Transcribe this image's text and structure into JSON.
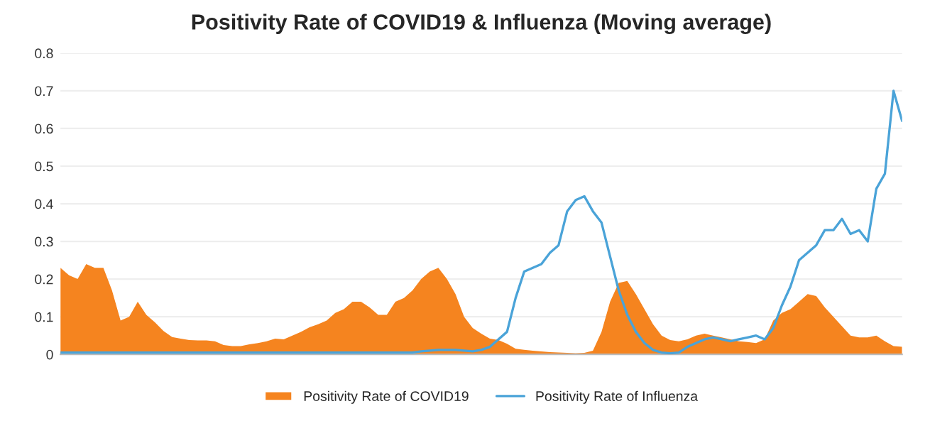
{
  "chart_data": {
    "type": "area",
    "title": "Positivity Rate of COVID19 & Influenza (Moving average)",
    "categories": [
      null,
      null,
      null,
      null,
      null,
      null,
      null,
      null,
      null,
      null,
      null,
      null,
      null,
      null,
      null,
      null,
      null,
      null,
      null,
      null,
      null,
      null,
      null,
      null,
      null,
      null,
      null,
      null,
      null,
      null,
      null,
      null,
      null,
      null,
      null,
      null,
      null,
      null,
      null,
      null,
      null,
      null,
      null,
      null,
      null,
      null,
      null,
      null,
      null,
      null,
      null,
      null,
      null,
      null,
      null,
      null,
      null,
      null,
      null,
      null,
      null,
      null,
      null,
      null,
      null,
      null,
      null,
      null,
      null,
      null,
      null,
      null,
      null,
      null,
      null,
      null,
      null,
      null,
      null,
      null,
      null,
      null,
      null,
      null,
      null,
      null,
      null,
      null,
      null,
      null,
      null,
      null,
      null,
      null,
      null,
      null,
      null,
      null,
      null
    ],
    "series": [
      {
        "name": "Positivity Rate of COVID19",
        "color": "#f5841f",
        "values": [
          0.23,
          0.21,
          0.2,
          0.24,
          0.23,
          0.23,
          0.17,
          0.09,
          0.1,
          0.14,
          0.105,
          0.085,
          0.062,
          0.046,
          0.042,
          0.038,
          0.037,
          0.037,
          0.035,
          0.025,
          0.022,
          0.022,
          0.027,
          0.03,
          0.035,
          0.042,
          0.04,
          0.05,
          0.06,
          0.072,
          0.08,
          0.09,
          0.11,
          0.12,
          0.14,
          0.14,
          0.125,
          0.105,
          0.105,
          0.14,
          0.15,
          0.17,
          0.2,
          0.22,
          0.23,
          0.2,
          0.16,
          0.1,
          0.07,
          0.055,
          0.042,
          0.038,
          0.028,
          0.015,
          0.012,
          0.01,
          0.008,
          0.006,
          0.005,
          0.004,
          0.003,
          0.004,
          0.01,
          0.06,
          0.14,
          0.19,
          0.195,
          0.16,
          0.12,
          0.08,
          0.05,
          0.038,
          0.035,
          0.04,
          0.05,
          0.055,
          0.05,
          0.045,
          0.04,
          0.035,
          0.033,
          0.03,
          0.04,
          0.09,
          0.11,
          0.12,
          0.14,
          0.16,
          0.155,
          0.125,
          0.1,
          0.075,
          0.05,
          0.045,
          0.045,
          0.05,
          0.035,
          0.022,
          0.02
        ]
      },
      {
        "name": "Positivity Rate of Influenza",
        "type": "line",
        "color": "#4aa3d8",
        "values": [
          0.005,
          0.005,
          0.005,
          0.005,
          0.005,
          0.005,
          0.005,
          0.005,
          0.005,
          0.005,
          0.005,
          0.005,
          0.005,
          0.005,
          0.005,
          0.005,
          0.005,
          0.005,
          0.005,
          0.005,
          0.005,
          0.005,
          0.005,
          0.005,
          0.005,
          0.005,
          0.005,
          0.005,
          0.005,
          0.005,
          0.005,
          0.005,
          0.005,
          0.005,
          0.005,
          0.005,
          0.005,
          0.005,
          0.005,
          0.005,
          0.005,
          0.005,
          0.008,
          0.01,
          0.012,
          0.012,
          0.012,
          0.01,
          0.008,
          0.012,
          0.02,
          0.04,
          0.06,
          0.15,
          0.22,
          0.23,
          0.24,
          0.27,
          0.29,
          0.38,
          0.41,
          0.42,
          0.38,
          0.35,
          0.26,
          0.17,
          0.105,
          0.06,
          0.03,
          0.012,
          0.005,
          0.003,
          0.005,
          0.02,
          0.03,
          0.04,
          0.045,
          0.04,
          0.035,
          0.04,
          0.045,
          0.05,
          0.04,
          0.07,
          0.13,
          0.18,
          0.25,
          0.27,
          0.29,
          0.33,
          0.33,
          0.36,
          0.32,
          0.33,
          0.3,
          0.44,
          0.48,
          0.7,
          0.62
        ]
      }
    ],
    "ylim": [
      0,
      0.8
    ],
    "yticks": [
      0,
      0.1,
      0.2,
      0.3,
      0.4,
      0.5,
      0.6,
      0.7,
      0.8
    ],
    "grid": "y",
    "legend": "bottom"
  }
}
